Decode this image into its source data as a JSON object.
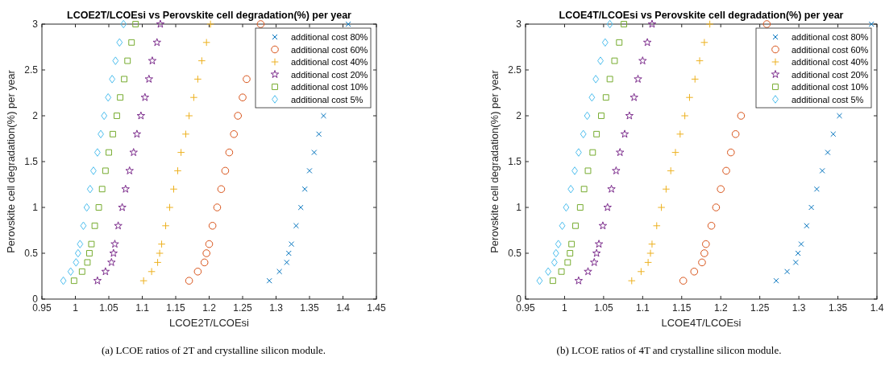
{
  "chart_data": [
    {
      "type": "scatter",
      "title": "LCOE2T/LCOEsi vs Perovskite cell degradation(%) per year",
      "xlabel": "LCOE2T/LCOEsi",
      "ylabel": "Perovskite cell degradation(%) per year",
      "xlim": [
        0.95,
        1.45
      ],
      "xticks": [
        0.95,
        1,
        1.05,
        1.1,
        1.15,
        1.2,
        1.25,
        1.3,
        1.35,
        1.4,
        1.45
      ],
      "ylim": [
        0,
        3
      ],
      "yticks": [
        0,
        0.5,
        1,
        1.5,
        2,
        2.5,
        3
      ],
      "legend": "top right",
      "grid": false,
      "annotations": [
        "(a) LCOE ratios of 2T and crystalline silicon module."
      ],
      "series": [
        {
          "name": "additional cost 80%",
          "color": "#0072bd",
          "marker": "cross",
          "x": [
            1.29,
            1.305,
            1.316,
            1.319,
            1.323,
            1.33,
            1.337,
            1.343,
            1.35,
            1.357,
            1.364,
            1.371,
            null,
            null,
            null,
            null,
            1.408
          ],
          "values": [
            0.2,
            0.3,
            0.4,
            0.5,
            0.6,
            0.8,
            1.0,
            1.2,
            1.4,
            1.6,
            1.8,
            2.0,
            null,
            null,
            null,
            null,
            3.0
          ]
        },
        {
          "name": "additional cost 60%",
          "color": "#d95319",
          "marker": "circle",
          "x": [
            1.17,
            1.183,
            1.193,
            1.196,
            1.2,
            1.205,
            1.212,
            1.218,
            1.224,
            1.23,
            1.237,
            1.243,
            1.25,
            1.256,
            null,
            null,
            1.277
          ],
          "values": [
            0.2,
            0.3,
            0.4,
            0.5,
            0.6,
            0.8,
            1.0,
            1.2,
            1.4,
            1.6,
            1.8,
            2.0,
            2.2,
            2.4,
            null,
            null,
            3.0
          ]
        },
        {
          "name": "additional cost 40%",
          "color": "#edb120",
          "marker": "plus",
          "x": [
            1.102,
            1.114,
            1.123,
            1.126,
            1.129,
            1.135,
            1.141,
            1.147,
            1.153,
            1.158,
            1.165,
            1.17,
            1.177,
            1.183,
            1.189,
            1.196,
            1.202
          ],
          "values": [
            0.2,
            0.3,
            0.4,
            0.5,
            0.6,
            0.8,
            1.0,
            1.2,
            1.4,
            1.6,
            1.8,
            2.0,
            2.2,
            2.4,
            2.6,
            2.8,
            3.0
          ]
        },
        {
          "name": "additional cost 20%",
          "color": "#7e2f8e",
          "marker": "star",
          "x": [
            1.033,
            1.045,
            1.054,
            1.057,
            1.059,
            1.064,
            1.07,
            1.075,
            1.081,
            1.087,
            1.092,
            1.098,
            1.104,
            1.11,
            1.115,
            1.122,
            1.127
          ],
          "values": [
            0.2,
            0.3,
            0.4,
            0.5,
            0.6,
            0.8,
            1.0,
            1.2,
            1.4,
            1.6,
            1.8,
            2.0,
            2.2,
            2.4,
            2.6,
            2.8,
            3.0
          ]
        },
        {
          "name": "additional cost 10%",
          "color": "#77ac30",
          "marker": "square",
          "x": [
            0.998,
            1.01,
            1.018,
            1.021,
            1.024,
            1.029,
            1.035,
            1.04,
            1.045,
            1.05,
            1.056,
            1.062,
            1.067,
            1.073,
            1.078,
            1.084,
            1.09
          ],
          "values": [
            0.2,
            0.3,
            0.4,
            0.5,
            0.6,
            0.8,
            1.0,
            1.2,
            1.4,
            1.6,
            1.8,
            2.0,
            2.2,
            2.4,
            2.6,
            2.8,
            3.0
          ]
        },
        {
          "name": "additional cost 5%",
          "color": "#4dbeee",
          "marker": "diamond",
          "x": [
            0.982,
            0.993,
            1.001,
            1.004,
            1.007,
            1.012,
            1.017,
            1.022,
            1.027,
            1.033,
            1.038,
            1.043,
            1.049,
            1.055,
            1.06,
            1.066,
            1.072
          ],
          "values": [
            0.2,
            0.3,
            0.4,
            0.5,
            0.6,
            0.8,
            1.0,
            1.2,
            1.4,
            1.6,
            1.8,
            2.0,
            2.2,
            2.4,
            2.6,
            2.8,
            3.0
          ]
        }
      ]
    },
    {
      "type": "scatter",
      "title": "LCOE4T/LCOEsi vs Perovskite cell degradation(%) per year",
      "xlabel": "LCOE4T/LCOEsi",
      "ylabel": "Perovskite cell degradation(%) per year",
      "xlim": [
        0.95,
        1.4
      ],
      "xticks": [
        0.95,
        1,
        1.05,
        1.1,
        1.15,
        1.2,
        1.25,
        1.3,
        1.35,
        1.4
      ],
      "ylim": [
        0,
        3
      ],
      "yticks": [
        0,
        0.5,
        1,
        1.5,
        2,
        2.5,
        3
      ],
      "legend": "top right",
      "grid": false,
      "annotations": [
        "(b) LCOE ratios of 4T and crystalline silicon module."
      ],
      "series": [
        {
          "name": "additional cost 80%",
          "color": "#0072bd",
          "marker": "cross",
          "x": [
            1.271,
            1.285,
            1.296,
            1.299,
            1.303,
            1.31,
            1.316,
            1.323,
            1.33,
            1.337,
            1.344,
            1.352,
            null,
            null,
            null,
            null,
            1.393
          ],
          "values": [
            0.2,
            0.3,
            0.4,
            0.5,
            0.6,
            0.8,
            1.0,
            1.2,
            1.4,
            1.6,
            1.8,
            2.0,
            null,
            null,
            null,
            null,
            3.0
          ]
        },
        {
          "name": "additional cost 60%",
          "color": "#d95319",
          "marker": "circle",
          "x": [
            1.152,
            1.166,
            1.176,
            1.179,
            1.181,
            1.188,
            1.194,
            1.2,
            1.207,
            1.213,
            1.219,
            1.226,
            null,
            null,
            null,
            null,
            1.259
          ],
          "values": [
            0.2,
            0.3,
            0.4,
            0.5,
            0.6,
            0.8,
            1.0,
            1.2,
            1.4,
            1.6,
            1.8,
            2.0,
            null,
            null,
            null,
            null,
            3.0
          ]
        },
        {
          "name": "additional cost 40%",
          "color": "#edb120",
          "marker": "plus",
          "x": [
            1.086,
            1.098,
            1.107,
            1.11,
            1.112,
            1.118,
            1.124,
            1.13,
            1.136,
            1.142,
            1.148,
            1.154,
            1.16,
            1.167,
            1.173,
            1.179,
            1.186
          ],
          "values": [
            0.2,
            0.3,
            0.4,
            0.5,
            0.6,
            0.8,
            1.0,
            1.2,
            1.4,
            1.6,
            1.8,
            2.0,
            2.2,
            2.4,
            2.6,
            2.8,
            3.0
          ]
        },
        {
          "name": "additional cost 20%",
          "color": "#7e2f8e",
          "marker": "star",
          "x": [
            1.018,
            1.03,
            1.038,
            1.041,
            1.044,
            1.049,
            1.055,
            1.06,
            1.066,
            1.071,
            1.077,
            1.083,
            1.089,
            1.094,
            1.1,
            1.106,
            1.112
          ],
          "values": [
            0.2,
            0.3,
            0.4,
            0.5,
            0.6,
            0.8,
            1.0,
            1.2,
            1.4,
            1.6,
            1.8,
            2.0,
            2.2,
            2.4,
            2.6,
            2.8,
            3.0
          ]
        },
        {
          "name": "additional cost 10%",
          "color": "#77ac30",
          "marker": "square",
          "x": [
            0.985,
            0.996,
            1.004,
            1.007,
            1.009,
            1.014,
            1.02,
            1.025,
            1.03,
            1.036,
            1.041,
            1.047,
            1.053,
            1.058,
            1.064,
            1.07,
            1.076
          ],
          "values": [
            0.2,
            0.3,
            0.4,
            0.5,
            0.6,
            0.8,
            1.0,
            1.2,
            1.4,
            1.6,
            1.8,
            2.0,
            2.2,
            2.4,
            2.6,
            2.8,
            3.0
          ]
        },
        {
          "name": "additional cost 5%",
          "color": "#4dbeee",
          "marker": "diamond",
          "x": [
            0.968,
            0.979,
            0.987,
            0.989,
            0.992,
            0.997,
            1.002,
            1.008,
            1.013,
            1.018,
            1.024,
            1.029,
            1.035,
            1.04,
            1.046,
            1.052,
            1.058
          ],
          "values": [
            0.2,
            0.3,
            0.4,
            0.5,
            0.6,
            0.8,
            1.0,
            1.2,
            1.4,
            1.6,
            1.8,
            2.0,
            2.2,
            2.4,
            2.6,
            2.8,
            3.0
          ]
        }
      ]
    }
  ]
}
